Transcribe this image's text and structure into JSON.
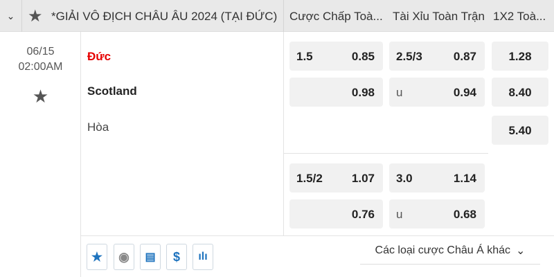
{
  "header": {
    "league_title": "*GIẢI VÔ ĐỊCH CHÂU ÂU 2024 (TẠI ĐỨC)",
    "columns": [
      "Cược Chấp Toà...",
      "Tài Xỉu Toàn Trận",
      "1X2 Toà..."
    ]
  },
  "match": {
    "date": "06/15",
    "time": "02:00AM",
    "home": "Đức",
    "away": "Scotland",
    "draw": "Hòa"
  },
  "odds": {
    "block1": {
      "handicap": [
        {
          "line": "1.5",
          "price": "0.85"
        },
        {
          "line": "",
          "price": "0.98"
        }
      ],
      "overunder": [
        {
          "line": "2.5/3",
          "price": "0.87"
        },
        {
          "line": "u",
          "price": "0.94"
        }
      ],
      "x12": [
        "1.28",
        "8.40",
        "5.40"
      ]
    },
    "block2": {
      "handicap": [
        {
          "line": "1.5/2",
          "price": "1.07"
        },
        {
          "line": "",
          "price": "0.76"
        }
      ],
      "overunder": [
        {
          "line": "3.0",
          "price": "1.14"
        },
        {
          "line": "u",
          "price": "0.68"
        }
      ]
    }
  },
  "footer": {
    "more_label": "Các loại cược Châu Á khác",
    "icons": [
      "star-icon",
      "jersey-icon",
      "layers-icon",
      "dollar-icon",
      "stats-icon"
    ]
  },
  "colors": {
    "home_team": "#e60000",
    "icon_blue": "#1e73be"
  }
}
